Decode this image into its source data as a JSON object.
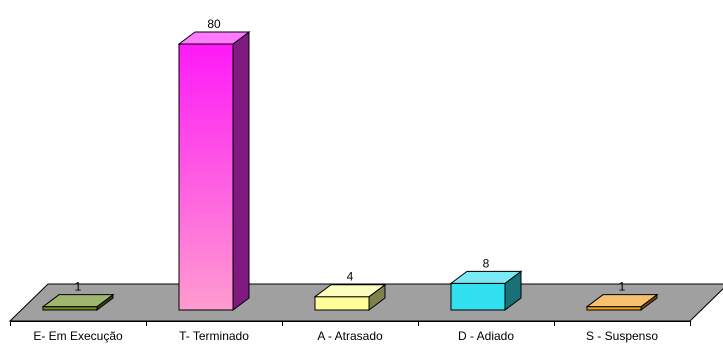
{
  "chart_data": {
    "type": "bar",
    "categories": [
      "E- Em Execução",
      "T- Terminado",
      "A - Atrasado",
      "D - Adiado",
      "S - Suspenso"
    ],
    "values": [
      1,
      80,
      4,
      8,
      1
    ],
    "colors": [
      "#6B8E23",
      "#FF33FF",
      "#FFFF99",
      "#33E0F0",
      "#F0A020"
    ],
    "floor_color": "#A0A0A0",
    "ylim": [
      0,
      80
    ],
    "grid": false,
    "legend": "none"
  }
}
